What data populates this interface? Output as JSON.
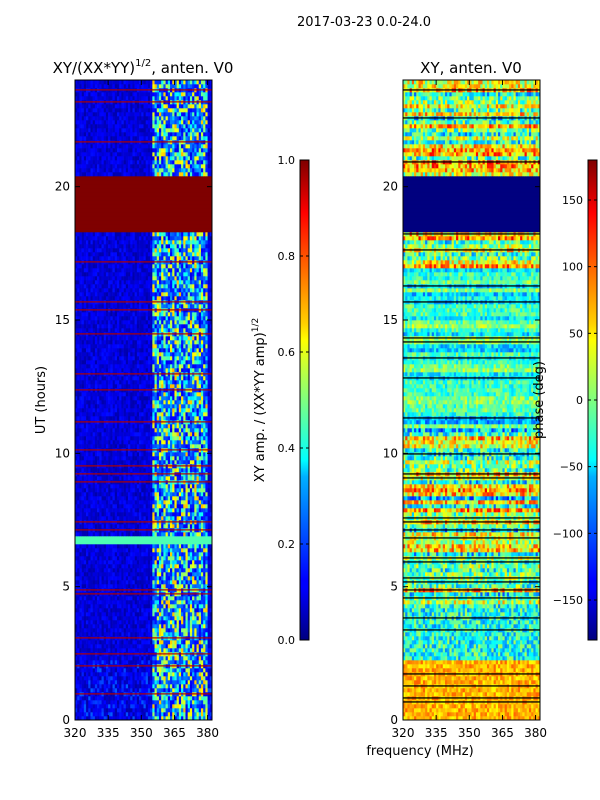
{
  "chart_data": [
    {
      "type": "heatmap",
      "suptitle": "2017-03-23 0.0-24.0",
      "title_main": "XY/(XX*YY)",
      "title_sup": "1/2",
      "title_suffix": ", anten. V0",
      "xlabel": "",
      "ylabel": "UT (hours)",
      "xlim": [
        320,
        382
      ],
      "ylim": [
        0,
        24
      ],
      "x_ticks": [
        320,
        335,
        350,
        365,
        380
      ],
      "y_ticks": [
        0,
        5,
        10,
        15,
        20
      ],
      "colorbar": {
        "label_main": "XY amp. / (XX*YY amp)",
        "label_sup": "1/2",
        "range": [
          0.0,
          1.0
        ],
        "ticks": [
          "0.0",
          "0.2",
          "0.4",
          "0.6",
          "0.8",
          "1.0"
        ],
        "tick_values": [
          0.0,
          0.2,
          0.4,
          0.6,
          0.8,
          1.0
        ]
      },
      "notable_features": {
        "saturated_band_hours": [
          18.3,
          20.4
        ],
        "bright_line_hours": [
          6.75
        ],
        "active_freq_band_mhz": [
          355,
          380
        ]
      }
    },
    {
      "type": "heatmap",
      "title": "XY, anten. V0",
      "xlabel": "frequency (MHz)",
      "ylabel": "",
      "xlim": [
        320,
        382
      ],
      "ylim": [
        0,
        24
      ],
      "x_ticks": [
        320,
        335,
        350,
        365,
        380
      ],
      "y_ticks": [
        0,
        5,
        10,
        15,
        20
      ],
      "colorbar": {
        "label": "phase (deg)",
        "range": [
          -180,
          180
        ],
        "ticks": [
          "−150",
          "−100",
          "−50",
          "0",
          "50",
          "100",
          "150"
        ],
        "tick_values": [
          -150,
          -100,
          -50,
          0,
          50,
          100,
          150
        ]
      },
      "notable_features": {
        "minimum_phase_band_hours": [
          18.3,
          20.4
        ],
        "noisy_low_band_hours": [
          2.2,
          4.3
        ]
      }
    }
  ]
}
